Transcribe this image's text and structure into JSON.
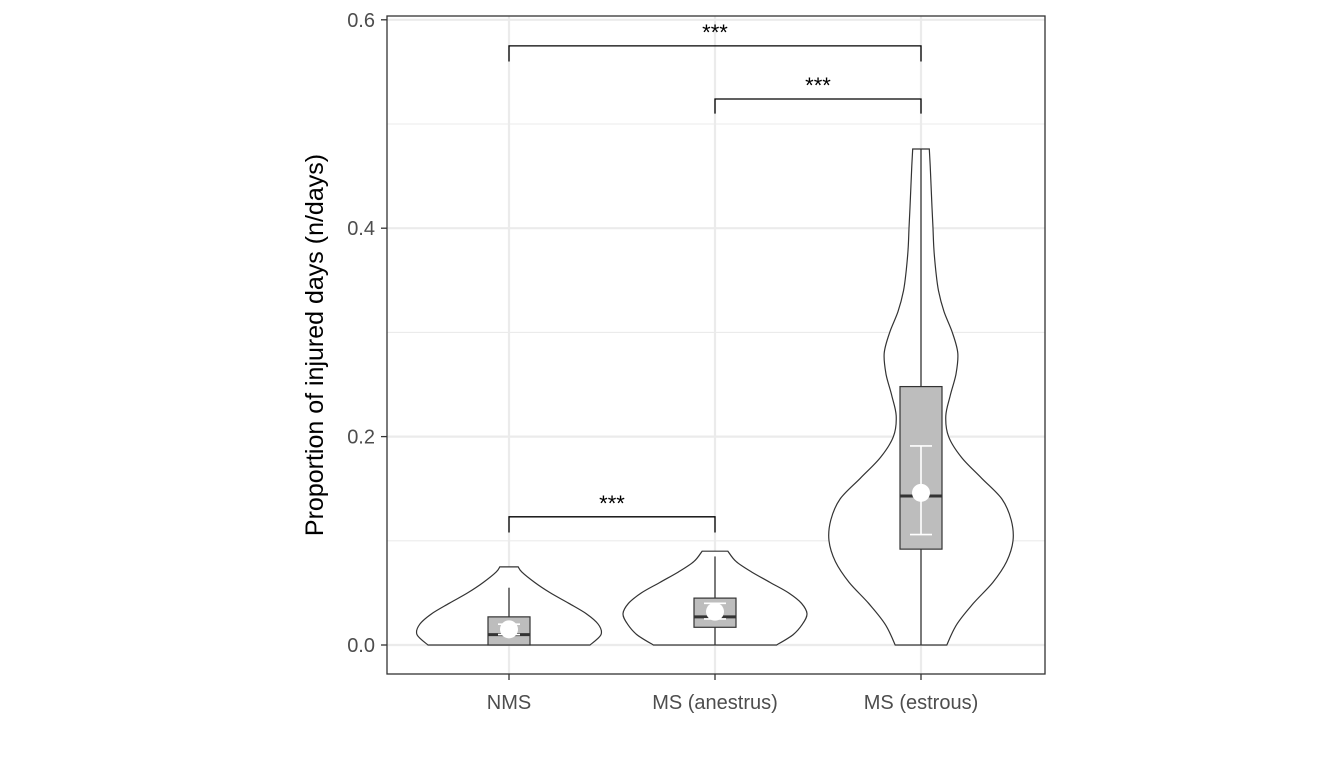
{
  "chart_data": {
    "type": "violin",
    "title": "",
    "xlabel": "",
    "ylabel": "Proportion of injured days (n/days)",
    "ylim": [
      -0.028,
      0.604
    ],
    "yticks": [
      "0.0",
      "0.2",
      "0.4",
      "0.6"
    ],
    "ytick_values": [
      0.0,
      0.2,
      0.4,
      0.6
    ],
    "categories": [
      "NMS",
      "MS (anestrus)",
      "MS (estrous)"
    ],
    "grid": true,
    "legend": "none",
    "colors": {
      "box_fill": "#bdbdbd",
      "outline": "#333333",
      "mean_point": "#ffffff",
      "grid": "#ebebeb"
    },
    "groups": [
      {
        "name": "NMS",
        "min": 0.0,
        "q1": 0.0,
        "median": 0.01,
        "q3": 0.027,
        "max": 0.055,
        "violin_max": 0.075,
        "mean": 0.015,
        "mean_ci": [
          0.01,
          0.02
        ],
        "density": [
          [
            0.0,
            0.88
          ],
          [
            0.01,
            1.0
          ],
          [
            0.02,
            0.97
          ],
          [
            0.03,
            0.84
          ],
          [
            0.04,
            0.65
          ],
          [
            0.05,
            0.45
          ],
          [
            0.06,
            0.28
          ],
          [
            0.07,
            0.14
          ],
          [
            0.075,
            0.1
          ]
        ]
      },
      {
        "name": "MS (anestrus)",
        "min": 0.0,
        "q1": 0.017,
        "median": 0.027,
        "q3": 0.045,
        "max": 0.085,
        "violin_max": 0.09,
        "mean": 0.032,
        "mean_ci": [
          0.025,
          0.04
        ],
        "density": [
          [
            0.0,
            0.67
          ],
          [
            0.01,
            0.85
          ],
          [
            0.02,
            0.95
          ],
          [
            0.03,
            1.0
          ],
          [
            0.04,
            0.94
          ],
          [
            0.05,
            0.8
          ],
          [
            0.06,
            0.6
          ],
          [
            0.07,
            0.4
          ],
          [
            0.08,
            0.23
          ],
          [
            0.09,
            0.14
          ]
        ]
      },
      {
        "name": "MS (estrous)",
        "min": 0.0,
        "q1": 0.092,
        "median": 0.143,
        "q3": 0.248,
        "max": 0.476,
        "violin_max": 0.476,
        "mean": 0.146,
        "mean_ci": [
          0.106,
          0.191
        ],
        "density": [
          [
            0.0,
            0.28
          ],
          [
            0.02,
            0.39
          ],
          [
            0.04,
            0.57
          ],
          [
            0.06,
            0.78
          ],
          [
            0.08,
            0.93
          ],
          [
            0.1,
            1.0
          ],
          [
            0.12,
            0.98
          ],
          [
            0.14,
            0.88
          ],
          [
            0.16,
            0.66
          ],
          [
            0.18,
            0.44
          ],
          [
            0.2,
            0.3
          ],
          [
            0.22,
            0.27
          ],
          [
            0.24,
            0.32
          ],
          [
            0.26,
            0.38
          ],
          [
            0.28,
            0.4
          ],
          [
            0.3,
            0.34
          ],
          [
            0.32,
            0.25
          ],
          [
            0.34,
            0.19
          ],
          [
            0.36,
            0.16
          ],
          [
            0.38,
            0.14
          ],
          [
            0.4,
            0.13
          ],
          [
            0.42,
            0.12
          ],
          [
            0.44,
            0.11
          ],
          [
            0.46,
            0.1
          ],
          [
            0.476,
            0.09
          ]
        ]
      }
    ],
    "significance": [
      {
        "from": "NMS",
        "to": "MS (anestrus)",
        "label": "***",
        "y": 0.123,
        "tick_bottom": 0.108
      },
      {
        "from": "MS (anestrus)",
        "to": "MS (estrous)",
        "label": "***",
        "y": 0.524,
        "tick_bottom": 0.51
      },
      {
        "from": "NMS",
        "to": "MS (estrous)",
        "label": "***",
        "y": 0.575,
        "tick_bottom": 0.56
      }
    ]
  }
}
